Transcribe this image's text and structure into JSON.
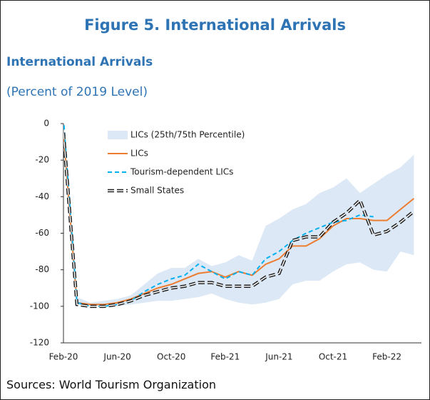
{
  "title": "Figure 5. International Arrivals",
  "subtitle": "International Arrivals",
  "unit_note": "(Percent of 2019 Level)",
  "source": "Sources: World Tourism Organization",
  "chart_data": {
    "type": "line",
    "categories": [
      "Feb-20",
      null,
      null,
      null,
      "Jun-20",
      null,
      null,
      null,
      "Oct-20",
      null,
      null,
      null,
      "Feb-21",
      null,
      null,
      null,
      "Jun-21",
      null,
      null,
      null,
      "Oct-21",
      null,
      null,
      null,
      "Feb-22",
      null,
      null
    ],
    "band": {
      "name": "LICs (25th/75th Percentile)",
      "color": "#dce8f5",
      "low": [
        -5,
        -99,
        -100,
        -100,
        -100,
        -99,
        -98,
        -97,
        -97,
        -96,
        -95,
        -93,
        -96,
        -98,
        -99,
        -98,
        -96,
        -88,
        -86,
        -86,
        -81,
        -77,
        -76,
        -80,
        -81,
        -70,
        -72
      ],
      "high": [
        -3,
        -95,
        -98,
        -97,
        -96,
        -94,
        -88,
        -82,
        -79,
        -79,
        -74,
        -78,
        -76,
        -72,
        -75,
        -56,
        -52,
        -47,
        -44,
        -38,
        -35,
        -30,
        -38,
        -33,
        -28,
        -24,
        -17
      ]
    },
    "series": [
      {
        "name": "LICs",
        "color": "#ed7d31",
        "style": "solid",
        "values": [
          -5,
          -98,
          -99,
          -99,
          -98,
          -96,
          -93,
          -90,
          -88,
          -85,
          -82,
          -81,
          -84,
          -81,
          -83,
          -77,
          -74,
          -67,
          -67,
          -63,
          -56,
          -52,
          -52,
          -53,
          -53,
          -47,
          -41
        ]
      },
      {
        "name": "Tourism-dependent LICs",
        "color": "#00b0f0",
        "style": "dashed",
        "values": [
          3,
          -98,
          -100,
          -100,
          -99,
          -97,
          -92,
          -88,
          -85,
          -83,
          -77,
          -81,
          -85,
          -81,
          -83,
          -74,
          -70,
          -64,
          -60,
          -57,
          -54,
          -53,
          -50,
          -51,
          null,
          null,
          null
        ]
      },
      {
        "name": "Small States",
        "color": "#222222",
        "style": "outlined-dash",
        "values": [
          -5,
          -99,
          -100,
          -100,
          -99,
          -97,
          -94,
          -92,
          -90,
          -89,
          -87,
          -87,
          -89,
          -89,
          -89,
          -84,
          -82,
          -64,
          -62,
          -62,
          -54,
          -49,
          -42,
          -61,
          -59,
          -54,
          -48
        ]
      }
    ],
    "ylim": [
      -120,
      0
    ],
    "yticks": [
      -120,
      -100,
      -80,
      -60,
      -40,
      -20,
      0
    ]
  }
}
